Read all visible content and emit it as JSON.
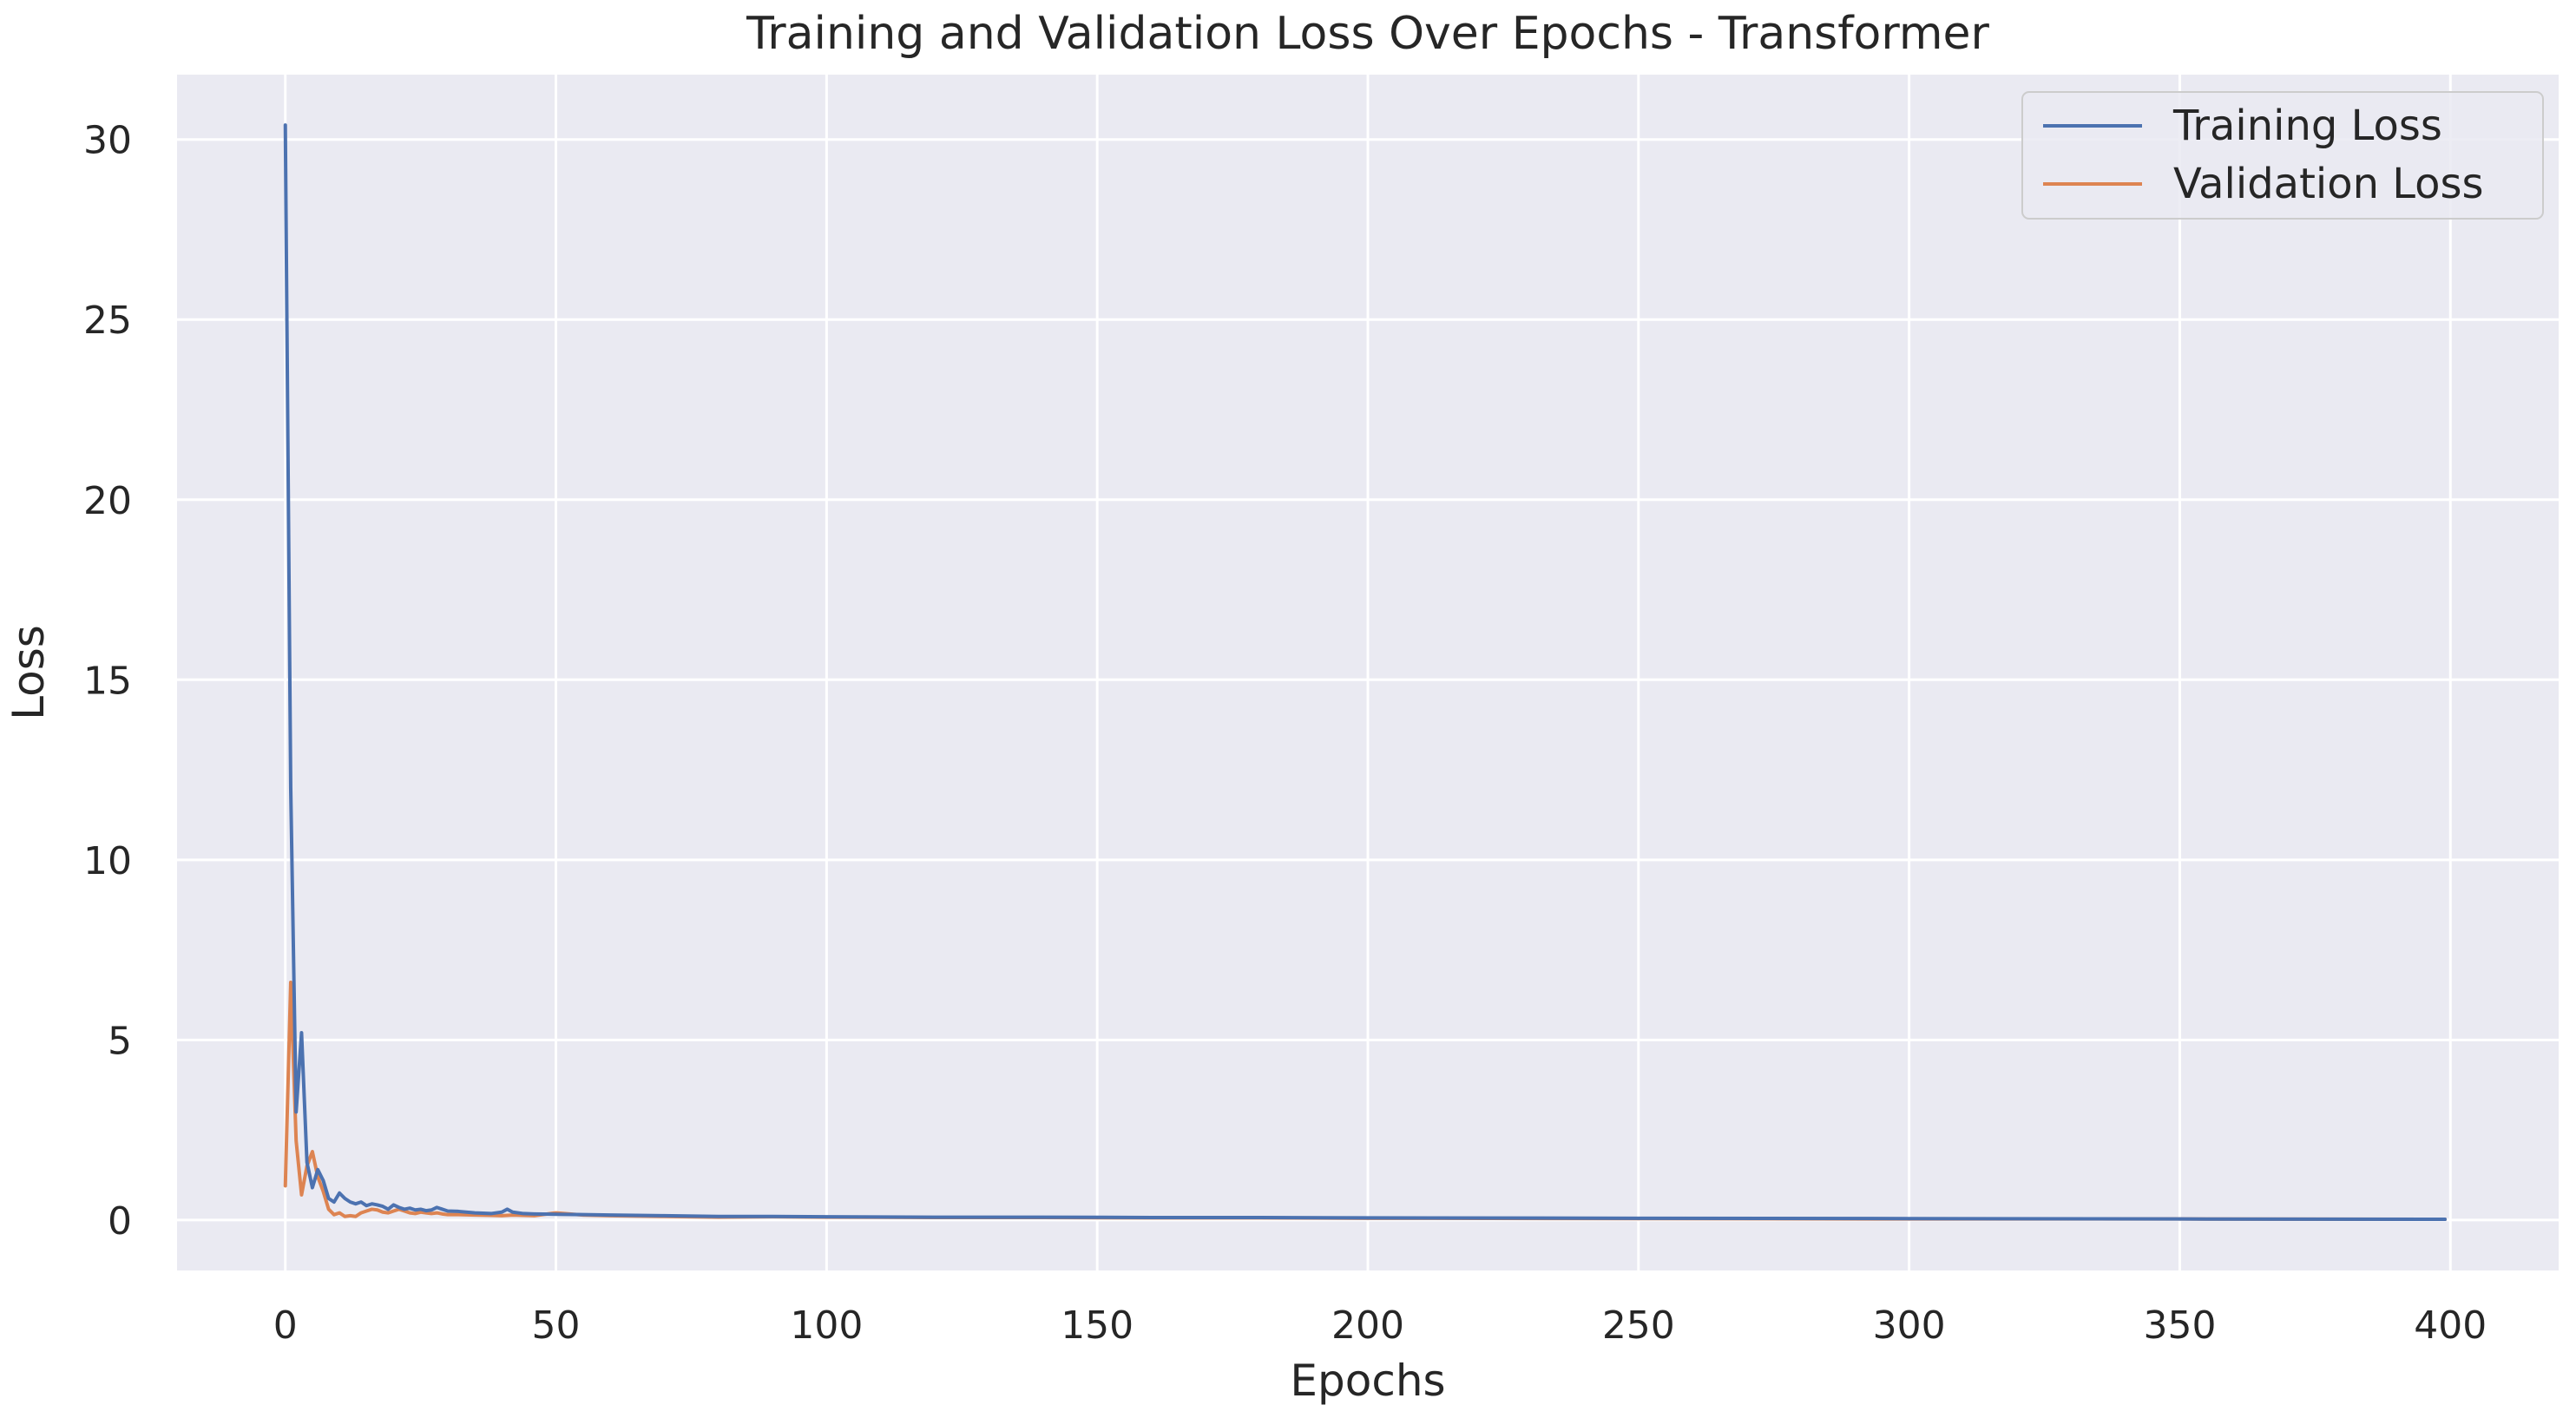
{
  "chart_data": {
    "type": "line",
    "title": "Training and Validation Loss Over Epochs - Transformer",
    "xlabel": "Epochs",
    "ylabel": "Loss",
    "xlim": [
      -20,
      420
    ],
    "ylim": [
      -1.4,
      31.8
    ],
    "xticks": [
      0,
      50,
      100,
      150,
      200,
      250,
      300,
      350,
      400
    ],
    "yticks": [
      0,
      5,
      10,
      15,
      20,
      25,
      30
    ],
    "grid": true,
    "legend_position": "top-right",
    "series": [
      {
        "name": "Training Loss",
        "color": "#4c72b0",
        "points": [
          [
            0,
            30.4
          ],
          [
            1,
            12.0
          ],
          [
            2,
            3.0
          ],
          [
            3,
            5.2
          ],
          [
            4,
            1.6
          ],
          [
            5,
            0.9
          ],
          [
            6,
            1.4
          ],
          [
            7,
            1.1
          ],
          [
            8,
            0.6
          ],
          [
            9,
            0.5
          ],
          [
            10,
            0.75
          ],
          [
            11,
            0.6
          ],
          [
            12,
            0.5
          ],
          [
            13,
            0.45
          ],
          [
            14,
            0.5
          ],
          [
            15,
            0.4
          ],
          [
            16,
            0.45
          ],
          [
            17,
            0.42
          ],
          [
            18,
            0.38
          ],
          [
            19,
            0.3
          ],
          [
            20,
            0.42
          ],
          [
            21,
            0.35
          ],
          [
            22,
            0.3
          ],
          [
            23,
            0.33
          ],
          [
            24,
            0.28
          ],
          [
            25,
            0.3
          ],
          [
            26,
            0.26
          ],
          [
            27,
            0.28
          ],
          [
            28,
            0.35
          ],
          [
            29,
            0.3
          ],
          [
            30,
            0.25
          ],
          [
            32,
            0.24
          ],
          [
            35,
            0.2
          ],
          [
            38,
            0.18
          ],
          [
            40,
            0.22
          ],
          [
            41,
            0.3
          ],
          [
            42,
            0.22
          ],
          [
            44,
            0.18
          ],
          [
            46,
            0.17
          ],
          [
            50,
            0.16
          ],
          [
            55,
            0.15
          ],
          [
            60,
            0.14
          ],
          [
            70,
            0.12
          ],
          [
            80,
            0.1
          ],
          [
            90,
            0.1
          ],
          [
            100,
            0.09
          ],
          [
            120,
            0.08
          ],
          [
            140,
            0.08
          ],
          [
            160,
            0.07
          ],
          [
            180,
            0.07
          ],
          [
            200,
            0.06
          ],
          [
            250,
            0.05
          ],
          [
            300,
            0.04
          ],
          [
            350,
            0.03
          ],
          [
            399,
            0.02
          ]
        ]
      },
      {
        "name": "Validation Loss",
        "color": "#dd8452",
        "points": [
          [
            0,
            0.95
          ],
          [
            1,
            6.6
          ],
          [
            2,
            2.2
          ],
          [
            3,
            0.7
          ],
          [
            4,
            1.5
          ],
          [
            5,
            1.9
          ],
          [
            6,
            1.2
          ],
          [
            7,
            0.8
          ],
          [
            8,
            0.3
          ],
          [
            9,
            0.15
          ],
          [
            10,
            0.2
          ],
          [
            11,
            0.1
          ],
          [
            12,
            0.12
          ],
          [
            13,
            0.1
          ],
          [
            14,
            0.2
          ],
          [
            15,
            0.25
          ],
          [
            16,
            0.3
          ],
          [
            17,
            0.28
          ],
          [
            18,
            0.22
          ],
          [
            19,
            0.2
          ],
          [
            20,
            0.25
          ],
          [
            21,
            0.3
          ],
          [
            22,
            0.25
          ],
          [
            23,
            0.2
          ],
          [
            24,
            0.18
          ],
          [
            25,
            0.22
          ],
          [
            26,
            0.2
          ],
          [
            27,
            0.18
          ],
          [
            28,
            0.2
          ],
          [
            29,
            0.17
          ],
          [
            30,
            0.15
          ],
          [
            32,
            0.15
          ],
          [
            35,
            0.14
          ],
          [
            38,
            0.13
          ],
          [
            40,
            0.12
          ],
          [
            42,
            0.14
          ],
          [
            44,
            0.13
          ],
          [
            46,
            0.12
          ],
          [
            50,
            0.2
          ],
          [
            55,
            0.14
          ],
          [
            60,
            0.12
          ],
          [
            70,
            0.1
          ],
          [
            80,
            0.08
          ],
          [
            90,
            0.09
          ],
          [
            100,
            0.08
          ],
          [
            120,
            0.07
          ],
          [
            140,
            0.07
          ],
          [
            160,
            0.06
          ],
          [
            180,
            0.06
          ],
          [
            200,
            0.05
          ],
          [
            250,
            0.04
          ],
          [
            300,
            0.03
          ],
          [
            350,
            0.03
          ],
          [
            399,
            0.02
          ]
        ]
      }
    ]
  }
}
